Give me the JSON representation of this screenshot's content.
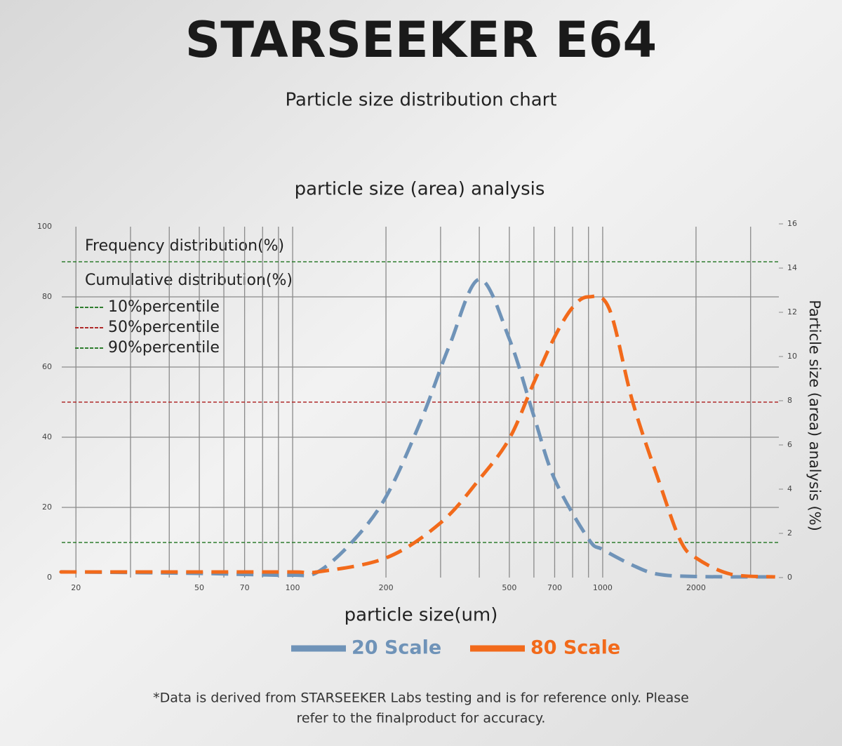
{
  "chart_data": {
    "type": "line",
    "title": "STARSEEKER E64",
    "subtitle": "Particle size distribution chart",
    "chart_title": "particle size (area) analysis",
    "x_label": "particle size(um)",
    "y2_label": "Particle size (area) analysis (%)",
    "legend_headings": [
      "Frequency distribution(%)",
      "Cumulative distribution(%)"
    ],
    "footnote": [
      "*Data is derived from STARSEEKER Labs testing and is for reference only. Please",
      "refer to the finalproduct for accuracy."
    ],
    "x_log": true,
    "xlim": [
      18,
      3700
    ],
    "xticks": [
      20,
      50,
      70,
      100,
      200,
      500,
      700,
      1000,
      2000
    ],
    "x_gridlines": [
      30,
      40,
      60,
      80,
      90,
      300,
      400,
      600,
      800,
      900,
      3000
    ],
    "ylim": [
      0,
      100
    ],
    "yticks": [
      0,
      20,
      40,
      60,
      80,
      100
    ],
    "y2lim": [
      0,
      16
    ],
    "y2ticks": [
      0,
      2,
      4,
      6,
      8,
      10,
      12,
      14,
      16
    ],
    "grid": true,
    "reference_lines": [
      {
        "name": "10%percentile",
        "value": 10,
        "color": "#2e7d2e"
      },
      {
        "name": "50%percentile",
        "value": 50,
        "color": "#b02a2a"
      },
      {
        "name": "90%percentile",
        "value": 90,
        "color": "#2e7d2e"
      }
    ],
    "series": [
      {
        "name": "20 Scale",
        "color": "#6f93b8",
        "x": [
          18,
          20,
          50,
          70,
          100,
          120,
          155,
          200,
          260,
          320,
          400,
          500,
          600,
          700,
          900,
          1000,
          1250,
          1500,
          2000,
          3600
        ],
        "values": [
          1.6,
          1.6,
          1.2,
          0.9,
          0.7,
          1.5,
          10,
          23,
          45,
          66,
          85,
          68,
          46,
          28,
          11,
          8,
          3.5,
          1,
          0.3,
          0.2
        ]
      },
      {
        "name": "80 Scale",
        "color": "#f26a1b",
        "x": [
          18,
          20,
          50,
          100,
          120,
          200,
          300,
          400,
          500,
          600,
          700,
          800,
          900,
          1050,
          1250,
          1530,
          1780,
          2000,
          2580,
          3600
        ],
        "values": [
          1.6,
          1.6,
          1.6,
          1.6,
          1.6,
          5.6,
          15.6,
          28,
          39.6,
          55.6,
          68.6,
          77,
          80,
          76.6,
          50,
          26.6,
          10.6,
          5.6,
          1,
          0.2
        ]
      }
    ]
  }
}
